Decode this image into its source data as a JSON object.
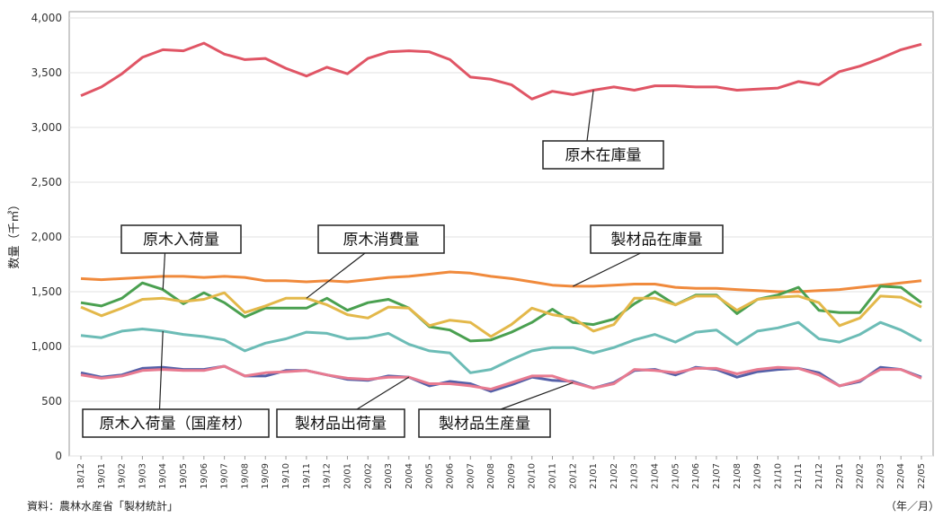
{
  "chart_data": {
    "type": "line",
    "ylabel": "数量（千㎥）",
    "ylim": [
      0,
      4000
    ],
    "yticks": [
      "0",
      "500",
      "1,000",
      "1,500",
      "2,000",
      "2,500",
      "3,000",
      "3,500",
      "4,000"
    ],
    "grid": true,
    "categories": [
      "18/12",
      "19/01",
      "19/02",
      "19/03",
      "19/04",
      "19/05",
      "19/06",
      "19/07",
      "19/08",
      "19/09",
      "19/10",
      "19/11",
      "19/12",
      "20/01",
      "20/02",
      "20/03",
      "20/04",
      "20/05",
      "20/06",
      "20/07",
      "20/08",
      "20/09",
      "20/10",
      "20/11",
      "20/12",
      "21/01",
      "21/02",
      "21/03",
      "21/04",
      "21/05",
      "21/06",
      "21/07",
      "21/08",
      "21/09",
      "21/10",
      "21/11",
      "21/12",
      "22/01",
      "22/02",
      "22/03",
      "22/04",
      "22/05"
    ],
    "series": [
      {
        "name": "原木在庫量",
        "color": "#e05565",
        "values": [
          3290,
          3370,
          3490,
          3640,
          3710,
          3700,
          3770,
          3670,
          3620,
          3630,
          3540,
          3470,
          3550,
          3490,
          3630,
          3690,
          3700,
          3690,
          3620,
          3460,
          3440,
          3390,
          3260,
          3330,
          3300,
          3340,
          3370,
          3340,
          3380,
          3380,
          3370,
          3370,
          3340,
          3350,
          3360,
          3420,
          3390,
          3510,
          3560,
          3630,
          3710,
          3760
        ]
      },
      {
        "name": "製材品在庫量",
        "color": "#f08a3c",
        "values": [
          1620,
          1610,
          1620,
          1630,
          1640,
          1640,
          1630,
          1640,
          1630,
          1600,
          1600,
          1590,
          1600,
          1590,
          1610,
          1630,
          1640,
          1660,
          1680,
          1670,
          1640,
          1620,
          1590,
          1560,
          1550,
          1550,
          1560,
          1570,
          1570,
          1540,
          1530,
          1530,
          1520,
          1510,
          1500,
          1500,
          1510,
          1520,
          1540,
          1560,
          1580,
          1600
        ]
      },
      {
        "name": "原木入荷量",
        "color": "#4aa050",
        "values": [
          1400,
          1370,
          1440,
          1580,
          1520,
          1390,
          1490,
          1400,
          1270,
          1350,
          1350,
          1350,
          1440,
          1330,
          1400,
          1430,
          1350,
          1180,
          1150,
          1050,
          1060,
          1130,
          1220,
          1340,
          1220,
          1200,
          1250,
          1390,
          1500,
          1380,
          1470,
          1470,
          1300,
          1430,
          1470,
          1540,
          1330,
          1310,
          1310,
          1550,
          1540,
          1400
        ]
      },
      {
        "name": "原木消費量",
        "color": "#e3b84a",
        "values": [
          1360,
          1280,
          1350,
          1430,
          1440,
          1410,
          1430,
          1490,
          1310,
          1370,
          1440,
          1440,
          1380,
          1290,
          1260,
          1360,
          1350,
          1190,
          1240,
          1220,
          1090,
          1200,
          1350,
          1290,
          1260,
          1140,
          1200,
          1440,
          1440,
          1380,
          1460,
          1460,
          1330,
          1430,
          1450,
          1460,
          1400,
          1190,
          1260,
          1460,
          1450,
          1360
        ]
      },
      {
        "name": "原木入荷量（国産材）",
        "color": "#6cbcb6",
        "values": [
          1100,
          1080,
          1140,
          1160,
          1140,
          1110,
          1090,
          1060,
          960,
          1030,
          1070,
          1130,
          1120,
          1070,
          1080,
          1120,
          1020,
          960,
          940,
          760,
          790,
          880,
          960,
          990,
          990,
          940,
          990,
          1060,
          1110,
          1040,
          1130,
          1150,
          1020,
          1140,
          1170,
          1220,
          1070,
          1040,
          1110,
          1220,
          1150,
          1050
        ]
      },
      {
        "name": "製材品出荷量",
        "color": "#5560a8",
        "values": [
          760,
          720,
          740,
          800,
          810,
          790,
          790,
          820,
          730,
          730,
          780,
          780,
          740,
          700,
          690,
          730,
          720,
          640,
          680,
          660,
          590,
          650,
          720,
          690,
          680,
          620,
          670,
          780,
          790,
          740,
          810,
          790,
          720,
          770,
          790,
          800,
          760,
          640,
          680,
          810,
          790,
          720
        ]
      },
      {
        "name": "製材品生産量",
        "color": "#e87a90",
        "values": [
          740,
          710,
          730,
          780,
          790,
          780,
          780,
          820,
          730,
          760,
          770,
          780,
          740,
          710,
          700,
          720,
          720,
          660,
          660,
          640,
          610,
          670,
          730,
          730,
          670,
          620,
          660,
          790,
          780,
          760,
          800,
          800,
          750,
          790,
          810,
          800,
          740,
          640,
          690,
          790,
          790,
          710
        ]
      }
    ],
    "callouts": [
      {
        "text": "原木在庫量",
        "series": 0
      },
      {
        "text": "製材品在庫量",
        "series": 1
      },
      {
        "text": "原木入荷量",
        "series": 2
      },
      {
        "text": "原木消費量",
        "series": 3
      },
      {
        "text": "原木入荷量（国産材）",
        "series": 4
      },
      {
        "text": "製材品出荷量",
        "series": 5
      },
      {
        "text": "製材品生産量",
        "series": 6
      }
    ]
  },
  "source": "資料：農林水産省「製材統計」",
  "unit_label": "（年／月）"
}
